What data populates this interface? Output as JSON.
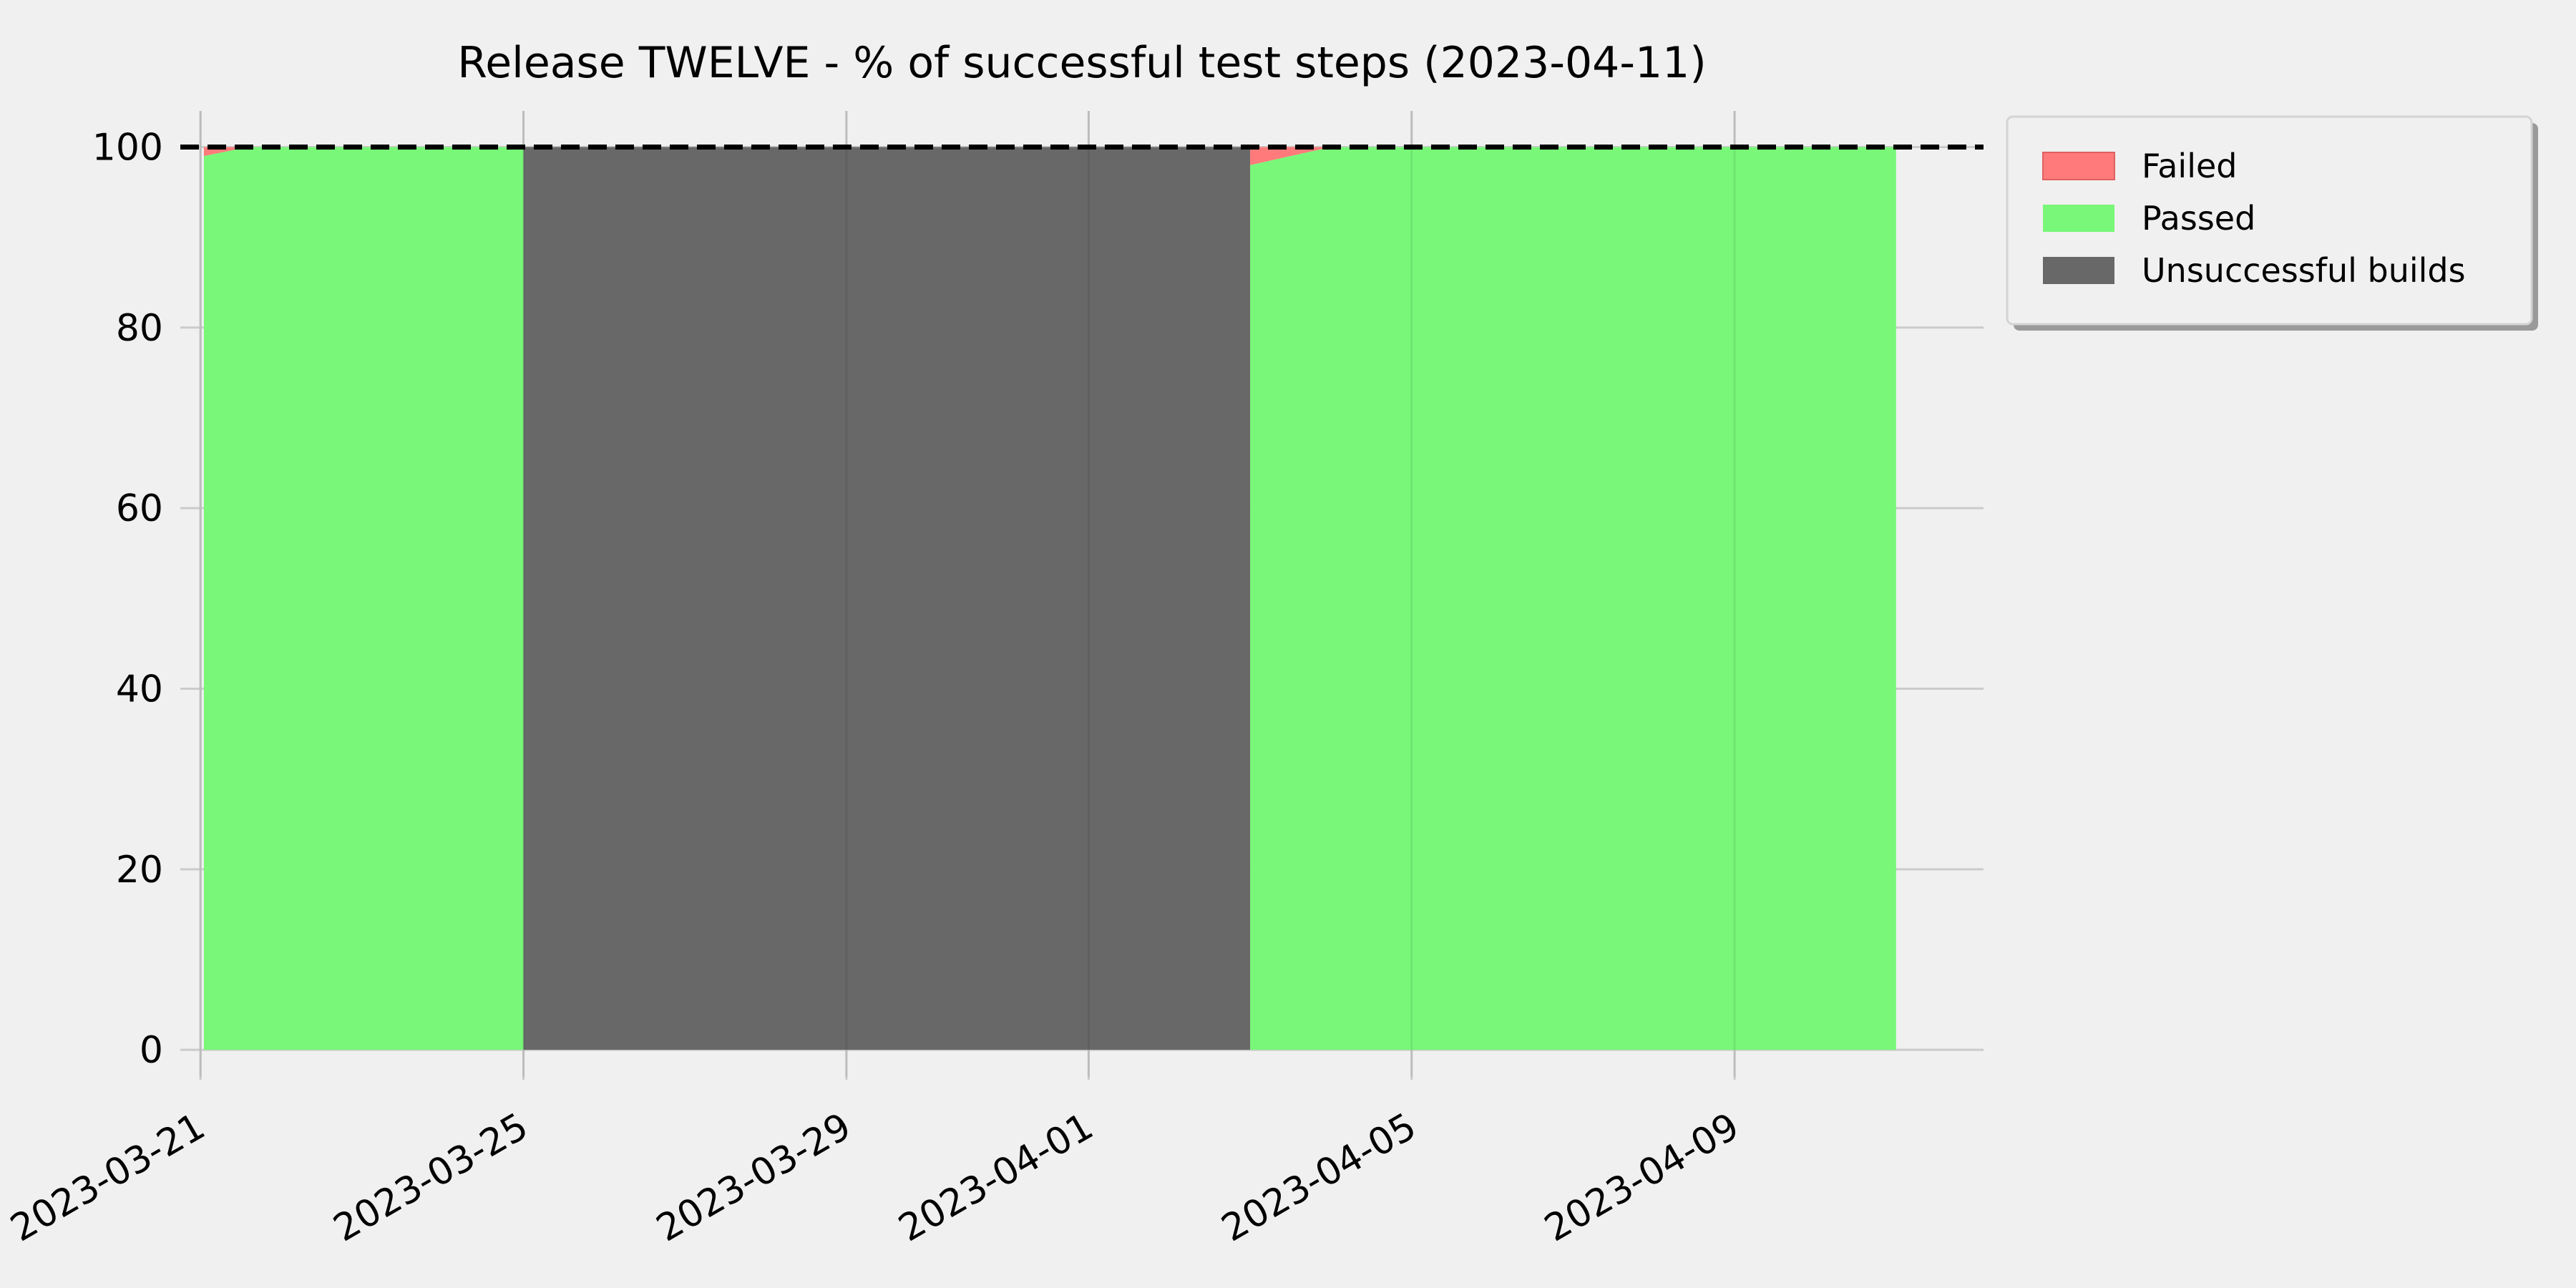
{
  "chart_data": {
    "type": "area",
    "title": "Release TWELVE - % of successful test steps (2023-04-11)",
    "xlabel": "",
    "ylabel": "",
    "x_axis_type": "date",
    "xlim": [
      "2023-03-20T18:00",
      "2023-04-12T02:00"
    ],
    "ylim": [
      -3,
      104
    ],
    "x_ticks": [
      "2023-03-21",
      "2023-03-25",
      "2023-03-29",
      "2023-04-01",
      "2023-04-05",
      "2023-04-09"
    ],
    "y_ticks": [
      0,
      20,
      40,
      60,
      80,
      100
    ],
    "grid": true,
    "legend_position": "outside upper right",
    "reference_line": {
      "y": 100,
      "style": "dashed",
      "color": "#000000"
    },
    "colors": {
      "failed": "#ff7b7b",
      "passed": "#78f778",
      "unsuccessful": "#686868"
    },
    "series": [
      {
        "name": "Failed",
        "x": [
          "2023-03-21T01:00",
          "2023-03-21T14:00",
          "2023-03-25T00:00",
          "2023-04-03T00:00",
          "2023-04-04T00:00",
          "2023-04-11T00:00"
        ],
        "y": [
          1.0,
          0.0,
          0.0,
          2.0,
          0.0,
          0.0
        ]
      },
      {
        "name": "Passed",
        "x": [
          "2023-03-21T01:00",
          "2023-03-21T14:00",
          "2023-03-25T00:00",
          "2023-04-03T00:00",
          "2023-04-04T00:00",
          "2023-04-11T00:00"
        ],
        "y": [
          99.0,
          100.0,
          100.0,
          98.0,
          100.0,
          100.0
        ]
      },
      {
        "name": "Unsuccessful builds",
        "x": [
          "2023-03-25T00:00",
          "2023-04-03T00:00"
        ],
        "y": [
          100,
          100
        ]
      }
    ]
  }
}
